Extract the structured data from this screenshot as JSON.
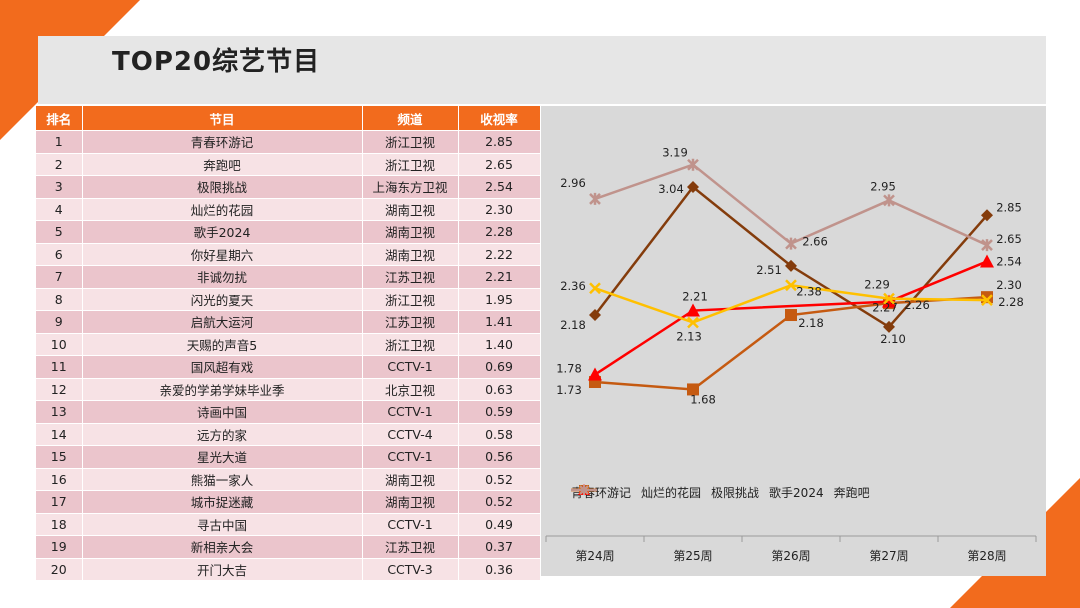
{
  "title": "TOP20综艺节目",
  "table": {
    "headers": [
      "排名",
      "节目",
      "频道",
      "收视率"
    ],
    "rows": [
      [
        "1",
        "青春环游记",
        "浙江卫视",
        "2.85"
      ],
      [
        "2",
        "奔跑吧",
        "浙江卫视",
        "2.65"
      ],
      [
        "3",
        "极限挑战",
        "上海东方卫视",
        "2.54"
      ],
      [
        "4",
        "灿烂的花园",
        "湖南卫视",
        "2.30"
      ],
      [
        "5",
        "歌手2024",
        "湖南卫视",
        "2.28"
      ],
      [
        "6",
        "你好星期六",
        "湖南卫视",
        "2.22"
      ],
      [
        "7",
        "非诚勿扰",
        "江苏卫视",
        "2.21"
      ],
      [
        "8",
        "闪光的夏天",
        "浙江卫视",
        "1.95"
      ],
      [
        "9",
        "启航大运河",
        "江苏卫视",
        "1.41"
      ],
      [
        "10",
        "天赐的声音5",
        "浙江卫视",
        "1.40"
      ],
      [
        "11",
        "国风超有戏",
        "CCTV-1",
        "0.69"
      ],
      [
        "12",
        "亲爱的学弟学妹毕业季",
        "北京卫视",
        "0.63"
      ],
      [
        "13",
        "诗画中国",
        "CCTV-1",
        "0.59"
      ],
      [
        "14",
        "远方的家",
        "CCTV-4",
        "0.58"
      ],
      [
        "15",
        "星光大道",
        "CCTV-1",
        "0.56"
      ],
      [
        "16",
        "熊猫一家人",
        "湖南卫视",
        "0.52"
      ],
      [
        "17",
        "城市捉迷藏",
        "湖南卫视",
        "0.52"
      ],
      [
        "18",
        "寻古中国",
        "CCTV-1",
        "0.49"
      ],
      [
        "19",
        "新相亲大会",
        "江苏卫视",
        "0.37"
      ],
      [
        "20",
        "开门大吉",
        "CCTV-3",
        "0.36"
      ]
    ]
  },
  "chart_data": {
    "type": "line",
    "categories": [
      "第24周",
      "第25周",
      "第26周",
      "第27周",
      "第28周"
    ],
    "ylim": [
      1.3,
      3.45
    ],
    "legend": "bottom",
    "series": [
      {
        "name": "青春环游记",
        "color": "#843c0c",
        "marker": "diamond",
        "values": [
          2.18,
          3.04,
          2.51,
          2.1,
          2.85
        ]
      },
      {
        "name": "灿烂的花园",
        "color": "#c55a11",
        "marker": "square",
        "values": [
          1.73,
          1.68,
          2.18,
          2.26,
          2.3
        ]
      },
      {
        "name": "极限挑战",
        "color": "#ff0000",
        "marker": "triangle",
        "values": [
          1.78,
          2.21,
          null,
          2.27,
          2.54
        ]
      },
      {
        "name": "歌手2024",
        "color": "#ffc000",
        "marker": "x",
        "values": [
          2.36,
          2.13,
          2.38,
          2.29,
          2.28
        ]
      },
      {
        "name": "奔跑吧",
        "color": "#c0938c",
        "marker": "star",
        "values": [
          2.96,
          3.19,
          2.66,
          2.95,
          2.65
        ]
      }
    ]
  }
}
